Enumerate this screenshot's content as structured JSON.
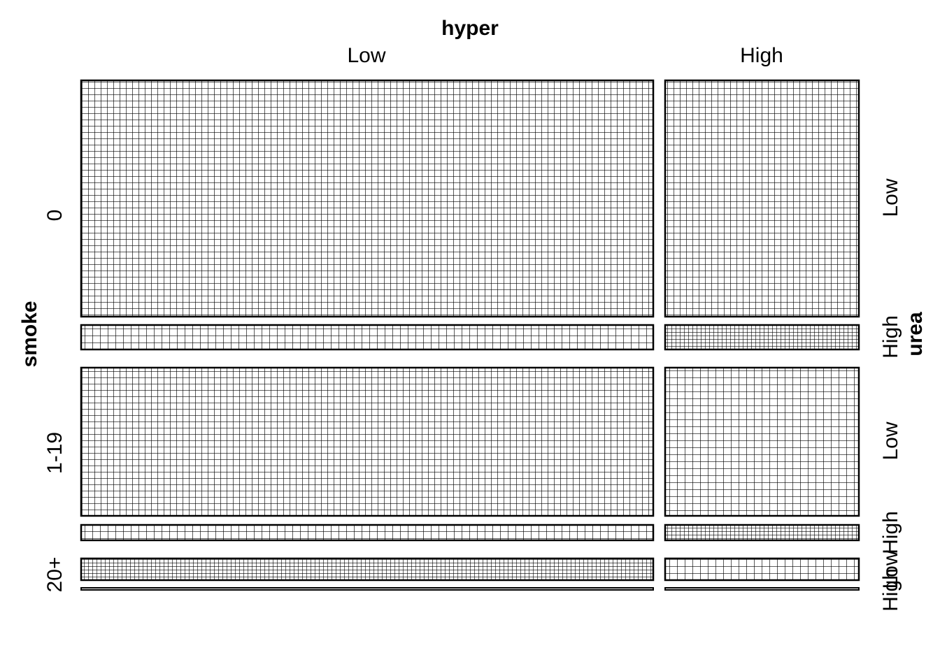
{
  "chart_data": {
    "type": "mosaic",
    "x_variable": "hyper",
    "y_variable": "smoke",
    "z_variable": "urea",
    "x_levels": [
      "Low",
      "High"
    ],
    "y_levels": [
      "0",
      "1-19",
      "20+"
    ],
    "z_levels": [
      "Low",
      "High"
    ],
    "proportions": {
      "hyper": [
        0.735,
        0.265
      ],
      "smoke_within_hyper": [
        0.575,
        0.375,
        0.05
      ],
      "urea_within_hyper_smoke": {
        "Low": [
          [
            0.906,
            0.094
          ],
          [
            0.905,
            0.095
          ],
          [
            0.78,
            0.22
          ]
        ],
        "High": [
          [
            0.906,
            0.094
          ],
          [
            0.905,
            0.095
          ],
          [
            0.78,
            0.22
          ]
        ]
      }
    },
    "pattern": "grid-shading",
    "grid_on": true,
    "legend": "none"
  },
  "labels": {
    "x_title": "hyper",
    "y_title": "smoke",
    "z_title": "urea",
    "x_ticks": [
      "Low",
      "High"
    ],
    "y_ticks": [
      "0",
      "1-19",
      "20+"
    ],
    "z_ticks": [
      "Low",
      "High",
      "Low",
      "High",
      "Low",
      "High"
    ]
  },
  "colors": {
    "ink": "#000000",
    "background": "#ffffff"
  }
}
